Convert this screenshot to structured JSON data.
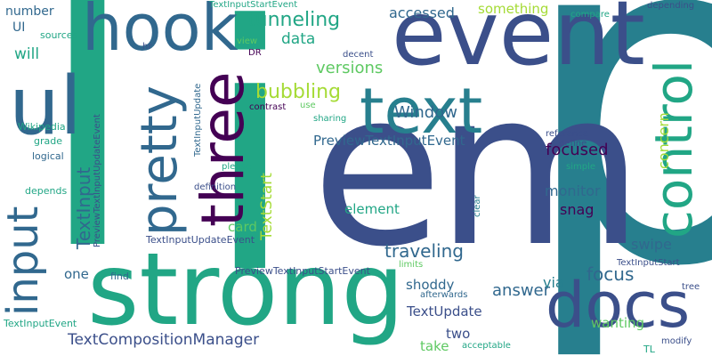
{
  "background": "#ffffff",
  "palette": {
    "dark_purple": "#440154",
    "indigo": "#3b4f8a",
    "blue": "#31688e",
    "teal": "#277f8e",
    "green": "#21a685",
    "light_green": "#5ec962",
    "yellow_green": "#a5db36"
  },
  "words": [
    {
      "text": "l",
      "color": "#21a685"
    },
    {
      "text": "i",
      "color": "#21a685"
    },
    {
      "text": "p",
      "color": "#277f8e"
    },
    {
      "text": "em",
      "color": "#3b4f8a"
    },
    {
      "text": "event",
      "color": "#3b4f8a"
    },
    {
      "text": "strong",
      "color": "#21a685"
    },
    {
      "text": "hook",
      "color": "#31688e"
    },
    {
      "text": "ul",
      "color": "#31688e"
    },
    {
      "text": "text",
      "color": "#277f8e"
    },
    {
      "text": "three",
      "color": "#440154"
    },
    {
      "text": "pretty",
      "color": "#31688e"
    },
    {
      "text": "control",
      "color": "#21a685"
    },
    {
      "text": "input",
      "color": "#31688e"
    },
    {
      "text": "docs",
      "color": "#3b4f8a"
    },
    {
      "text": "tunneling",
      "color": "#21a685"
    },
    {
      "text": "bubbling",
      "color": "#a5db36"
    },
    {
      "text": "data",
      "color": "#21a685"
    },
    {
      "text": "versions",
      "color": "#5ec962"
    },
    {
      "text": "accessed",
      "color": "#31688e"
    },
    {
      "text": "something",
      "color": "#a5db36"
    },
    {
      "text": "Window",
      "color": "#31688e"
    },
    {
      "text": "PreviewTextInputEvent",
      "color": "#31688e"
    },
    {
      "text": "focused",
      "color": "#440154"
    },
    {
      "text": "concern",
      "color": "#a5db36"
    },
    {
      "text": "monitor",
      "color": "#31688e"
    },
    {
      "text": "snag",
      "color": "#440154"
    },
    {
      "text": "element",
      "color": "#21a685"
    },
    {
      "text": "TextInput",
      "color": "#31688e"
    },
    {
      "text": "TextStart",
      "color": "#a5db36"
    },
    {
      "text": "card",
      "color": "#5ec962"
    },
    {
      "text": "traveling",
      "color": "#31688e"
    },
    {
      "text": "focus",
      "color": "#31688e"
    },
    {
      "text": "answer",
      "color": "#31688e"
    },
    {
      "text": "swipe",
      "color": "#31688e"
    },
    {
      "text": "shoddy",
      "color": "#31688e"
    },
    {
      "text": "via",
      "color": "#277f8e"
    },
    {
      "text": "TextUpdate",
      "color": "#3b4f8a"
    },
    {
      "text": "wanting",
      "color": "#5ec962"
    },
    {
      "text": "two",
      "color": "#3b4f8a"
    },
    {
      "text": "take",
      "color": "#5ec962"
    },
    {
      "text": "one",
      "color": "#31688e"
    },
    {
      "text": "TextCompositionManager",
      "color": "#3b4f8a"
    },
    {
      "text": "number",
      "color": "#31688e"
    },
    {
      "text": "UI",
      "color": "#31688e"
    },
    {
      "text": "will",
      "color": "#21a685"
    },
    {
      "text": "sources",
      "color": "#21a685"
    },
    {
      "text": "hr",
      "color": "#3b4f8a"
    },
    {
      "text": "view",
      "color": "#5ec962"
    },
    {
      "text": "DR",
      "color": "#440154"
    },
    {
      "text": "decent",
      "color": "#3b4f8a"
    },
    {
      "text": "TextInputStartEvent",
      "color": "#21a685"
    },
    {
      "text": "compare",
      "color": "#21a685"
    },
    {
      "text": "depending",
      "color": "#3b4f8a"
    },
    {
      "text": "contrast",
      "color": "#440154"
    },
    {
      "text": "use",
      "color": "#5ec962"
    },
    {
      "text": "sharing",
      "color": "#21a685"
    },
    {
      "text": "reference",
      "color": "#3b4f8a"
    },
    {
      "text": "define",
      "color": "#3b4f8a"
    },
    {
      "text": "simple",
      "color": "#21a685"
    },
    {
      "text": "please",
      "color": "#21a685"
    },
    {
      "text": "definition",
      "color": "#3b4f8a"
    },
    {
      "text": "TextInputUpdate",
      "color": "#31688e"
    },
    {
      "text": "Wikipedia",
      "color": "#21a685"
    },
    {
      "text": "grade",
      "color": "#21a685"
    },
    {
      "text": "logical",
      "color": "#31688e"
    },
    {
      "text": "depends",
      "color": "#21a685"
    },
    {
      "text": "PreviewTextInputUpdateEvent",
      "color": "#3b4f8a"
    },
    {
      "text": "clear",
      "color": "#277f8e"
    },
    {
      "text": "TextInputUpdateEvent",
      "color": "#3b4f8a"
    },
    {
      "text": "PreviewTextInputStartEvent",
      "color": "#3b4f8a"
    },
    {
      "text": "limits",
      "color": "#5ec962"
    },
    {
      "text": "find",
      "color": "#31688e"
    },
    {
      "text": "afterwards",
      "color": "#31688e"
    },
    {
      "text": "TextInputEvent",
      "color": "#21a685"
    },
    {
      "text": "acceptable",
      "color": "#21a685"
    },
    {
      "text": "modify",
      "color": "#3b4f8a"
    },
    {
      "text": "TextInputStart",
      "color": "#3b4f8a"
    },
    {
      "text": "tree",
      "color": "#3b4f8a"
    },
    {
      "text": "TL",
      "color": "#21a685"
    }
  ]
}
